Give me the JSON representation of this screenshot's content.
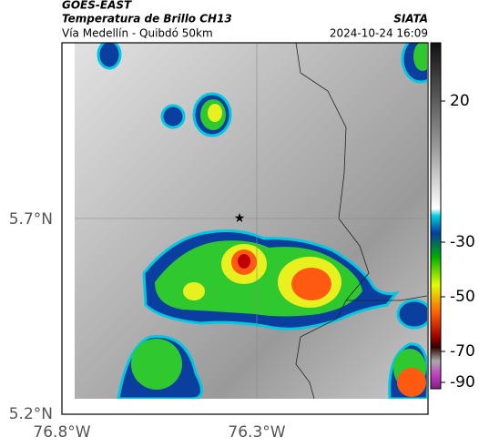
{
  "header": {
    "source": "GOES-EAST",
    "title": "Temperatura de Brillo CH13",
    "subtitle": "Vía Medellín - Quibdó 50km",
    "brand": "SIATA",
    "timestamp": "2024-10-24 16:09"
  },
  "map": {
    "lat_labels": [
      "5.7°N",
      "5.2°N"
    ],
    "lon_labels": [
      "76.8°W",
      "76.3°W"
    ]
  },
  "colorbar": {
    "ticks": [
      20,
      -30,
      -50,
      -70,
      -90
    ]
  }
}
